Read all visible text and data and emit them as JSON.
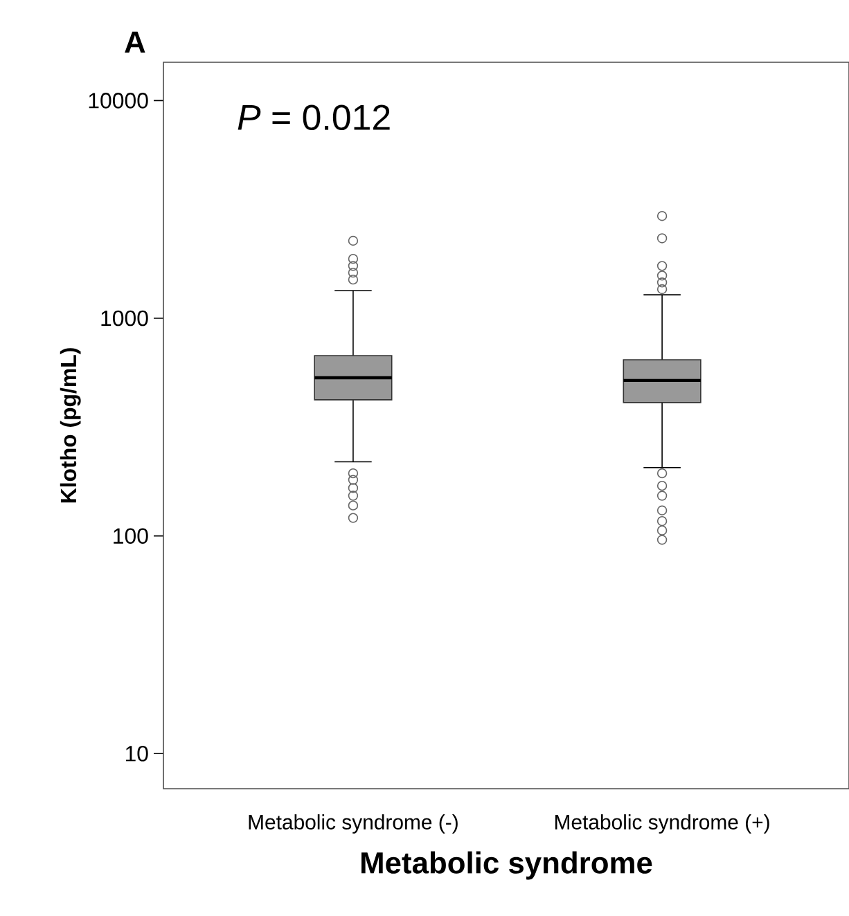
{
  "chart_data": {
    "type": "box",
    "title": "A",
    "xlabel": "Metabolic syndrome",
    "ylabel": "Klotho (pg/mL)",
    "categories": [
      "Metabolic syndrome (-)",
      "Metabolic syndrome (+)"
    ],
    "series": [
      {
        "color": "#999999",
        "boxes": [
          {
            "low": 219,
            "q1": 422,
            "median": 533,
            "q3": 674,
            "high": 1340,
            "outliers": [
              2270,
              1875,
              1740,
              1620,
              1505,
              194,
              181,
              166,
              153,
              138,
              121
            ]
          },
          {
            "low": 206,
            "q1": 410,
            "median": 518,
            "q3": 645,
            "high": 1282,
            "outliers": [
              2950,
              2330,
              1740,
              1570,
              1460,
              1360,
              194,
              170,
              153,
              131,
              117,
              106,
              96
            ]
          }
        ]
      }
    ],
    "log": "y",
    "ylim": [
      6.9,
      15000
    ],
    "yticks": [
      10,
      100,
      1000,
      10000
    ],
    "annotations": [
      "*P* = 0.012"
    ]
  }
}
